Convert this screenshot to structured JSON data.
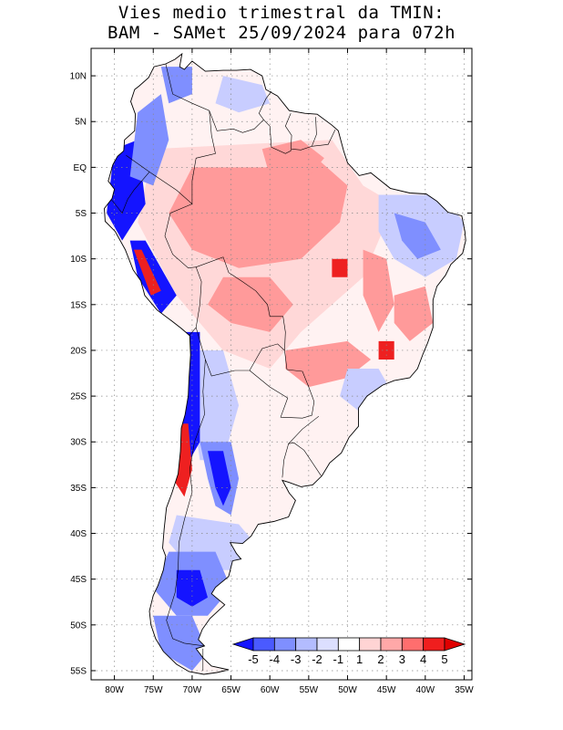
{
  "title_line_1": "Vies medio trimestral da TMIN:",
  "title_line_2": "BAM - SAMet 25/09/2024  para 072h",
  "map": {
    "lon_range": [
      -83,
      -34
    ],
    "lat_range": [
      -56,
      13
    ],
    "gridlines": "dotted",
    "lat_ticks": [
      "10N",
      "5N",
      "EQ",
      "5S",
      "10S",
      "15S",
      "20S",
      "25S",
      "30S",
      "35S",
      "40S",
      "45S",
      "50S",
      "55S"
    ],
    "lon_ticks": [
      "80W",
      "75W",
      "70W",
      "65W",
      "60W",
      "55W",
      "50W",
      "45W",
      "40W",
      "35W"
    ]
  },
  "colorbar": {
    "placement": "bottom-right inside map",
    "labels": [
      "-5",
      "-4",
      "-3",
      "-2",
      "-1",
      "1",
      "2",
      "3",
      "4",
      "5"
    ],
    "colors": [
      "#1414ff",
      "#4a5aff",
      "#7f8fff",
      "#b3bcff",
      "#dcdfff",
      "#ffffff",
      "#ffd4d4",
      "#ffa8a8",
      "#ff6e6e",
      "#f01e1e",
      "#e00000"
    ]
  },
  "bias_colors": {
    "strong_negative": "#1414ff",
    "negative": "#7f8fff",
    "slight_negative": "#c8cdff",
    "neutral": "#ffffff",
    "slight_positive": "#ffd8d8",
    "positive": "#ff9a9a",
    "strong_positive": "#ee2020"
  }
}
